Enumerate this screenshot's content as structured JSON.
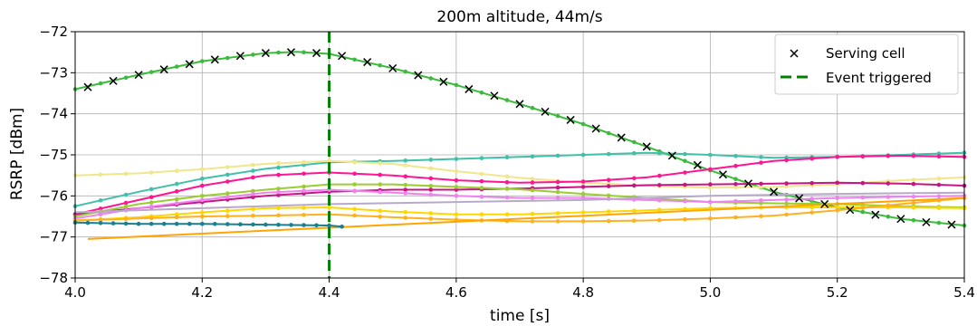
{
  "chart_data": {
    "type": "line",
    "title": "200m altitude, 44m/s",
    "xlabel": "time [s]",
    "ylabel": "RSRP [dBm]",
    "xlim": [
      4.0,
      5.4
    ],
    "ylim": [
      -78,
      -72
    ],
    "xticks": [
      4.0,
      4.2,
      4.4,
      4.6,
      4.8,
      5.0,
      5.2,
      5.4
    ],
    "xtick_labels": [
      "4.0",
      "4.2",
      "4.4",
      "4.6",
      "4.8",
      "5.0",
      "5.2",
      "5.4"
    ],
    "yticks": [
      -72,
      -73,
      -74,
      -75,
      -76,
      -77,
      -78
    ],
    "ytick_labels": [
      "−72",
      "−73",
      "−74",
      "−75",
      "−76",
      "−77",
      "−78"
    ],
    "grid": true,
    "legend": {
      "placement": "top-right",
      "entries": [
        {
          "label": "Serving cell",
          "marker": "x",
          "color": "#000000"
        },
        {
          "label": "Event triggered",
          "style": "dashed",
          "color": "#008000"
        }
      ]
    },
    "event_x": 4.4,
    "serving_markers": {
      "x": [
        4.02,
        4.06,
        4.1,
        4.14,
        4.18,
        4.22,
        4.26,
        4.3,
        4.34,
        4.38,
        4.42,
        4.46,
        4.5,
        4.54,
        4.58,
        4.62,
        4.66,
        4.7,
        4.74,
        4.78,
        4.82,
        4.86,
        4.9,
        4.94,
        4.98,
        5.02,
        5.06,
        5.1,
        5.14,
        5.18,
        5.22,
        5.26,
        5.3,
        5.34,
        5.38
      ],
      "y": [
        -73.35,
        -73.2,
        -73.05,
        -72.92,
        -72.79,
        -72.68,
        -72.59,
        -72.52,
        -72.5,
        -72.52,
        -72.59,
        -72.74,
        -72.89,
        -73.06,
        -73.22,
        -73.4,
        -73.56,
        -73.76,
        -73.95,
        -74.15,
        -74.36,
        -74.58,
        -74.8,
        -75.02,
        -75.25,
        -75.48,
        -75.7,
        -75.9,
        -76.06,
        -76.2,
        -76.34,
        -76.46,
        -76.56,
        -76.64,
        -76.7
      ]
    },
    "series": [
      {
        "color": "#3cba3c",
        "marker_every": 0.04,
        "x": [
          4.0,
          4.1,
          4.2,
          4.3,
          4.35,
          4.4,
          4.5,
          4.6,
          4.7,
          4.8,
          4.9,
          5.0,
          5.1,
          5.2,
          5.3,
          5.4
        ],
        "y": [
          -73.4,
          -73.05,
          -72.72,
          -72.52,
          -72.49,
          -72.54,
          -72.89,
          -73.3,
          -73.76,
          -74.25,
          -74.8,
          -75.38,
          -75.9,
          -76.28,
          -76.56,
          -76.72
        ]
      },
      {
        "color": "#40c0a8",
        "marker_every": 0.04,
        "x": [
          4.0,
          4.1,
          4.2,
          4.3,
          4.4,
          4.5,
          4.6,
          4.7,
          4.8,
          4.9,
          5.0,
          5.1,
          5.2,
          5.3,
          5.4
        ],
        "y": [
          -76.25,
          -75.9,
          -75.58,
          -75.34,
          -75.18,
          -75.15,
          -75.1,
          -75.05,
          -75.0,
          -74.95,
          -75.0,
          -75.07,
          -75.05,
          -75.0,
          -74.95
        ]
      },
      {
        "color": "#f0e68c",
        "marker_every": 0.04,
        "x": [
          4.0,
          4.1,
          4.2,
          4.3,
          4.4,
          4.5,
          4.6,
          4.7,
          4.8,
          4.9,
          5.0,
          5.1,
          5.2,
          5.3,
          5.4
        ],
        "y": [
          -75.5,
          -75.45,
          -75.35,
          -75.22,
          -75.15,
          -75.22,
          -75.4,
          -75.56,
          -75.68,
          -75.75,
          -75.8,
          -75.78,
          -75.72,
          -75.62,
          -75.55
        ]
      },
      {
        "color": "#ff1493",
        "marker_every": 0.04,
        "x": [
          4.0,
          4.1,
          4.2,
          4.3,
          4.4,
          4.5,
          4.6,
          4.7,
          4.8,
          4.9,
          5.0,
          5.1,
          5.2,
          5.3,
          5.4
        ],
        "y": [
          -76.45,
          -76.1,
          -75.75,
          -75.5,
          -75.43,
          -75.5,
          -75.62,
          -75.68,
          -75.65,
          -75.55,
          -75.35,
          -75.15,
          -75.05,
          -75.02,
          -75.05
        ]
      },
      {
        "color": "#c71585",
        "marker_every": 0.04,
        "x": [
          4.0,
          4.1,
          4.2,
          4.3,
          4.4,
          4.5,
          4.6,
          4.7,
          4.8,
          4.9,
          5.0,
          5.1,
          5.2,
          5.3,
          5.4
        ],
        "y": [
          -76.45,
          -76.3,
          -76.15,
          -76.0,
          -75.9,
          -75.85,
          -75.85,
          -75.82,
          -75.78,
          -75.74,
          -75.72,
          -75.7,
          -75.68,
          -75.7,
          -75.75
        ]
      },
      {
        "color": "#9acd32",
        "marker_every": 0.04,
        "x": [
          4.0,
          4.1,
          4.2,
          4.3,
          4.4,
          4.5,
          4.6,
          4.7,
          4.8,
          4.9,
          5.0,
          5.1,
          5.2,
          5.3,
          5.4
        ],
        "y": [
          -76.5,
          -76.2,
          -76.0,
          -75.85,
          -75.72,
          -75.72,
          -75.78,
          -75.84,
          -75.95,
          -76.05,
          -76.15,
          -76.18,
          -76.2,
          -76.25,
          -76.28
        ]
      },
      {
        "color": "#ee82ee",
        "marker_every": 0.04,
        "x": [
          4.0,
          4.1,
          4.2,
          4.3,
          4.4,
          4.5,
          4.6,
          4.7,
          4.8,
          4.9,
          5.0,
          5.1,
          5.2,
          5.3,
          5.4
        ],
        "y": [
          -76.55,
          -76.3,
          -76.1,
          -75.92,
          -75.85,
          -75.92,
          -76.0,
          -76.05,
          -76.05,
          -76.1,
          -76.15,
          -76.1,
          -76.05,
          -76.02,
          -76.0
        ]
      },
      {
        "color": "#b8a9c9",
        "marker_every": 0,
        "x": [
          4.0,
          4.2,
          4.4,
          4.6,
          4.8,
          5.0,
          5.2,
          5.4
        ],
        "y": [
          -76.4,
          -76.3,
          -76.2,
          -76.15,
          -76.1,
          -76.0,
          -75.95,
          -75.92
        ]
      },
      {
        "color": "#ffd700",
        "marker_every": 0.04,
        "x": [
          4.0,
          4.1,
          4.2,
          4.3,
          4.4,
          4.5,
          4.6,
          4.7,
          4.8,
          4.9,
          5.0,
          5.1,
          5.2,
          5.3,
          5.4
        ],
        "y": [
          -76.6,
          -76.52,
          -76.4,
          -76.3,
          -76.28,
          -76.38,
          -76.45,
          -76.45,
          -76.4,
          -76.35,
          -76.3,
          -76.28,
          -76.28,
          -76.28,
          -76.3
        ]
      },
      {
        "color": "#ffb020",
        "marker_every": 0.04,
        "x": [
          4.0,
          4.1,
          4.2,
          4.3,
          4.4,
          4.5,
          4.6,
          4.7,
          4.8,
          4.9,
          5.0,
          5.1,
          5.2,
          5.3,
          5.4
        ],
        "y": [
          -76.6,
          -76.55,
          -76.5,
          -76.48,
          -76.45,
          -76.52,
          -76.58,
          -76.62,
          -76.62,
          -76.6,
          -76.55,
          -76.48,
          -76.35,
          -76.2,
          -76.05
        ]
      },
      {
        "color": "#ffa500",
        "marker_every": 0,
        "x": [
          4.02,
          5.4
        ],
        "y": [
          -77.05,
          -76.05
        ]
      },
      {
        "color": "#1a7f8e",
        "marker_every": 0.02,
        "x": [
          4.0,
          4.1,
          4.2,
          4.3,
          4.4,
          4.42
        ],
        "y": [
          -76.65,
          -76.68,
          -76.68,
          -76.7,
          -76.72,
          -76.75
        ]
      }
    ]
  }
}
